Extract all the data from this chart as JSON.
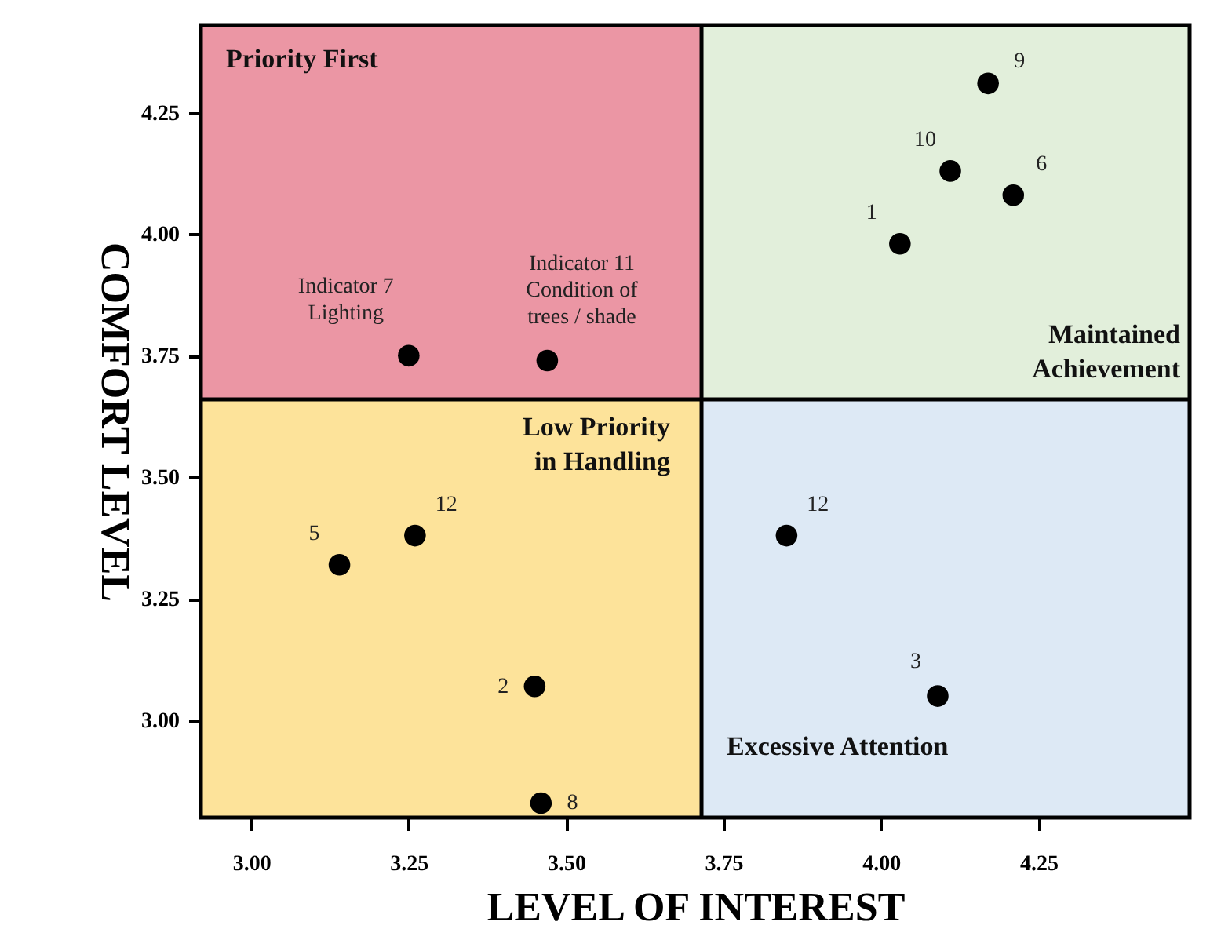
{
  "chart_data": {
    "type": "scatter",
    "xlabel": "LEVEL OF INTEREST",
    "ylabel": "COMFORT LEVEL",
    "xlim": [
      2.92,
      4.49
    ],
    "ylim": [
      2.8,
      4.43
    ],
    "xticks": [
      {
        "value": 3,
        "label": "3.00"
      },
      {
        "value": 3.25,
        "label": "3.25"
      },
      {
        "value": 3.5,
        "label": "3.50"
      },
      {
        "value": 3.75,
        "label": "3.75"
      },
      {
        "value": 4,
        "label": "4.00"
      },
      {
        "value": 4.25,
        "label": "4.25"
      }
    ],
    "yticks": [
      {
        "value": 3,
        "label": "3.00"
      },
      {
        "value": 3.25,
        "label": "3.25"
      },
      {
        "value": 3.5,
        "label": "3.50"
      },
      {
        "value": 3.75,
        "label": "3.75"
      },
      {
        "value": 4,
        "label": "4.00"
      },
      {
        "value": 4.25,
        "label": "4.25"
      }
    ],
    "x": [
      4.03,
      3.45,
      4.09,
      3.14,
      4.21,
      3.46,
      4.17,
      4.11,
      3.26,
      3.85,
      3.25,
      3.47
    ],
    "series": [
      {
        "color": "#000000",
        "values": [
          3.98,
          3.07,
          3.05,
          3.32,
          4.08,
          2.83,
          4.31,
          4.13,
          3.38,
          3.38,
          3.75,
          3.74
        ]
      }
    ],
    "marker": "circle",
    "grid": false,
    "ref_lines": [
      {
        "axis": "x",
        "value": 3.715,
        "color": "#000000"
      },
      {
        "axis": "y",
        "value": 3.66,
        "color": "#000000"
      }
    ],
    "annotations": [
      "Priority First",
      "Maintained\nAchievement",
      "Low Priority\nin Handling",
      "Excessive Attention",
      {
        "text": "1",
        "x": 4.03,
        "y": 3.98
      },
      {
        "text": "2",
        "x": 3.45,
        "y": 3.07
      },
      {
        "text": "3",
        "x": 4.09,
        "y": 3.05
      },
      {
        "text": "5",
        "x": 3.14,
        "y": 3.32
      },
      {
        "text": "6",
        "x": 4.21,
        "y": 4.08
      },
      {
        "text": "8",
        "x": 3.46,
        "y": 2.83
      },
      {
        "text": "9",
        "x": 4.17,
        "y": 4.31
      },
      {
        "text": "10",
        "x": 4.11,
        "y": 4.13
      },
      {
        "text": "12",
        "x": 3.26,
        "y": 3.38
      },
      {
        "text": "12",
        "x": 3.85,
        "y": 3.38
      },
      {
        "text": "Indicator  7\nLighting",
        "x": 3.25,
        "y": 3.75
      },
      {
        "text": "Indicator  11\nCondition of\ntrees / shade",
        "x": 3.47,
        "y": 3.74
      }
    ]
  }
}
